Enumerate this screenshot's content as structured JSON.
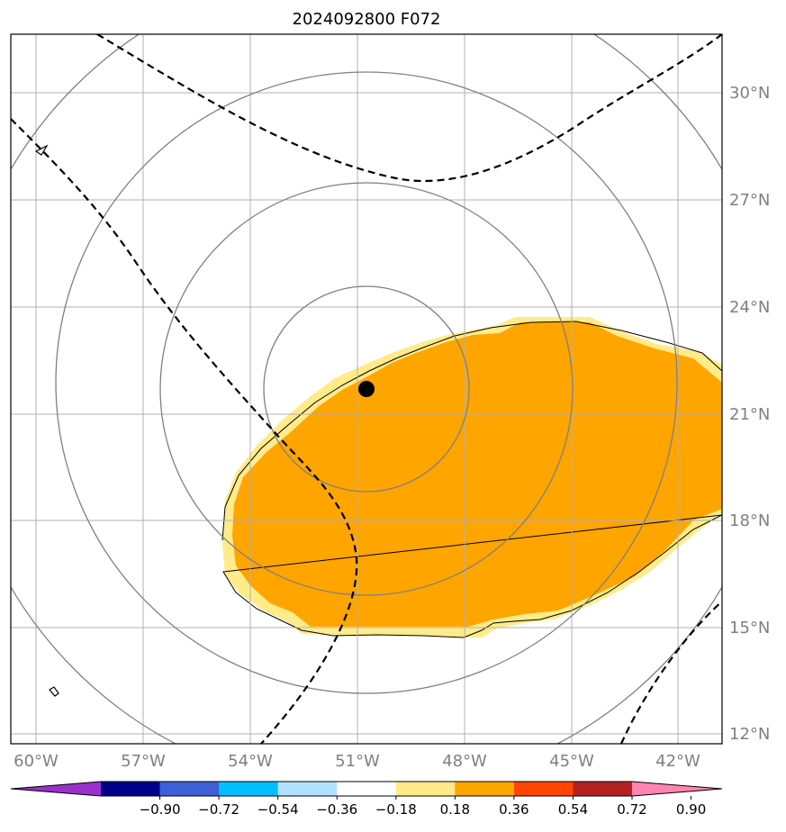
{
  "title": "2024092800 F072",
  "map": {
    "lon_labels": [
      "60°W",
      "57°W",
      "54°W",
      "51°W",
      "48°W",
      "45°W",
      "42°W"
    ],
    "lat_labels": [
      "30°N",
      "27°N",
      "24°N",
      "21°N",
      "18°N",
      "15°N",
      "12°N"
    ],
    "lon_range_deg": [
      -60.7,
      -40.7
    ],
    "lat_range_deg": [
      11.8,
      31.7
    ],
    "gridlines": true,
    "center_marker": {
      "lon": -50.75,
      "lat": 21.7,
      "color": "#000000"
    },
    "range_rings_color": "#808080",
    "shaded_region_color": "#ffa500",
    "shaded_edge_color": "#ffeb8a",
    "contour_line_color": "#000000"
  },
  "colorbar": {
    "ticks": [
      "−0.90",
      "−0.72",
      "−0.54",
      "−0.36",
      "−0.18",
      "0.18",
      "0.36",
      "0.54",
      "0.72",
      "0.90"
    ],
    "colors": [
      "#9932cc",
      "#00008b",
      "#3e5fd6",
      "#00bfff",
      "#b0e2ff",
      "#ffffff",
      "#ffeb8a",
      "#ffa500",
      "#ff4500",
      "#b22222",
      "#ff85b0"
    ]
  }
}
